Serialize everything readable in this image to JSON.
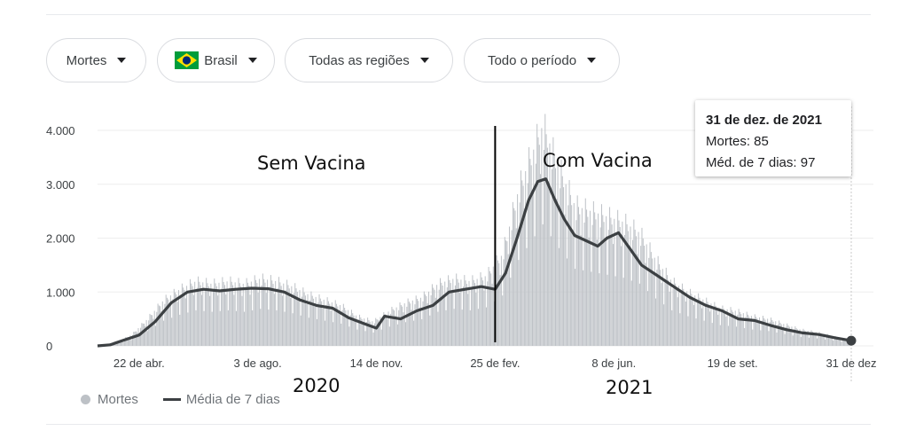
{
  "filters": {
    "metric": "Mortes",
    "country": "Brasil",
    "region": "Todas as regiões",
    "period": "Todo o período"
  },
  "colors": {
    "bars": "#bdc1c6",
    "average_line": "#3c4043",
    "divider": "#000000",
    "flag_green": "#009c3b",
    "flag_yellow": "#ffdf00",
    "flag_blue": "#002776"
  },
  "tooltip": {
    "title": "31 de dez. de 2021",
    "deaths_label": "Mortes: 85",
    "average_label": "Méd. de 7 dias: 97"
  },
  "legend": {
    "bars": "Mortes",
    "line": "Média de 7 dias"
  },
  "annotations": {
    "before": "Sem Vacina",
    "after": "Com Vacina",
    "year_left": "2020",
    "year_right": "2021"
  },
  "chart_data": {
    "type": "bar",
    "title": "",
    "xlabel": "",
    "ylabel": "",
    "ylim": [
      0,
      4000
    ],
    "yticks": [
      0,
      1000,
      2000,
      3000,
      4000
    ],
    "ytick_labels": [
      "0",
      "1.000",
      "2.000",
      "3.000",
      "4.000"
    ],
    "x_range": [
      "2020-03-17",
      "2021-12-31"
    ],
    "xtick_dates": [
      "2020-04-22",
      "2020-08-03",
      "2020-11-14",
      "2021-02-25",
      "2021-06-08",
      "2021-09-19",
      "2021-12-31"
    ],
    "xtick_labels": [
      "22 de abr.",
      "3 de ago.",
      "14 de nov.",
      "25 de fev.",
      "8 de jun.",
      "19 de set.",
      "31 de dez"
    ],
    "grid": true,
    "legend_position": "bottom-left",
    "vertical_marker_date": "2021-02-25",
    "highlight_point": {
      "date": "2021-12-31",
      "value": 97
    },
    "series": [
      {
        "name": "Mortes",
        "kind": "daily_bars",
        "note": "daily deaths fluctuate around the 7-day average (weekly reporting cycle)",
        "points": [
          [
            "2020-03-17",
            5
          ],
          [
            "2020-04-01",
            60
          ],
          [
            "2020-04-15",
            200
          ],
          [
            "2020-04-29",
            500
          ],
          [
            "2020-05-13",
            850
          ],
          [
            "2020-05-27",
            1050
          ],
          [
            "2020-06-10",
            1200
          ],
          [
            "2020-06-24",
            1150
          ],
          [
            "2020-07-08",
            1200
          ],
          [
            "2020-07-22",
            1150
          ],
          [
            "2020-08-05",
            1250
          ],
          [
            "2020-08-19",
            1200
          ],
          [
            "2020-09-02",
            1100
          ],
          [
            "2020-09-16",
            950
          ],
          [
            "2020-09-30",
            850
          ],
          [
            "2020-10-14",
            750
          ],
          [
            "2020-10-28",
            550
          ],
          [
            "2020-11-11",
            450
          ],
          [
            "2020-11-25",
            650
          ],
          [
            "2020-12-09",
            800
          ],
          [
            "2020-12-23",
            900
          ],
          [
            "2021-01-06",
            1150
          ],
          [
            "2021-01-20",
            1250
          ],
          [
            "2021-02-03",
            1200
          ],
          [
            "2021-02-17",
            1300
          ],
          [
            "2021-03-03",
            1700
          ],
          [
            "2021-03-17",
            2900
          ],
          [
            "2021-03-31",
            3700
          ],
          [
            "2021-04-07",
            4100
          ],
          [
            "2021-04-21",
            3300
          ],
          [
            "2021-05-05",
            2600
          ],
          [
            "2021-05-19",
            2500
          ],
          [
            "2021-06-02",
            2400
          ],
          [
            "2021-06-16",
            2300
          ],
          [
            "2021-06-30",
            2100
          ],
          [
            "2021-07-14",
            1600
          ],
          [
            "2021-07-28",
            1200
          ],
          [
            "2021-08-11",
            1000
          ],
          [
            "2021-08-25",
            850
          ],
          [
            "2021-09-08",
            700
          ],
          [
            "2021-09-22",
            650
          ],
          [
            "2021-10-06",
            550
          ],
          [
            "2021-10-20",
            500
          ],
          [
            "2021-11-03",
            400
          ],
          [
            "2021-11-17",
            300
          ],
          [
            "2021-12-01",
            250
          ],
          [
            "2021-12-15",
            180
          ],
          [
            "2021-12-31",
            85
          ]
        ]
      },
      {
        "name": "Média de 7 dias",
        "kind": "line",
        "points": [
          [
            "2020-03-17",
            0
          ],
          [
            "2020-03-28",
            20
          ],
          [
            "2020-04-08",
            100
          ],
          [
            "2020-04-22",
            200
          ],
          [
            "2020-05-06",
            450
          ],
          [
            "2020-05-20",
            800
          ],
          [
            "2020-06-03",
            1000
          ],
          [
            "2020-06-17",
            1050
          ],
          [
            "2020-07-01",
            1020
          ],
          [
            "2020-07-15",
            1050
          ],
          [
            "2020-07-29",
            1070
          ],
          [
            "2020-08-12",
            1060
          ],
          [
            "2020-08-26",
            1000
          ],
          [
            "2020-09-09",
            850
          ],
          [
            "2020-09-23",
            750
          ],
          [
            "2020-10-07",
            700
          ],
          [
            "2020-10-21",
            520
          ],
          [
            "2020-11-05",
            400
          ],
          [
            "2020-11-14",
            330
          ],
          [
            "2020-11-21",
            550
          ],
          [
            "2020-12-05",
            500
          ],
          [
            "2020-12-19",
            650
          ],
          [
            "2021-01-02",
            750
          ],
          [
            "2021-01-16",
            1000
          ],
          [
            "2021-01-30",
            1050
          ],
          [
            "2021-02-13",
            1100
          ],
          [
            "2021-02-25",
            1050
          ],
          [
            "2021-03-06",
            1350
          ],
          [
            "2021-03-16",
            2000
          ],
          [
            "2021-03-26",
            2700
          ],
          [
            "2021-04-03",
            3050
          ],
          [
            "2021-04-10",
            3100
          ],
          [
            "2021-04-18",
            2700
          ],
          [
            "2021-04-26",
            2350
          ],
          [
            "2021-05-05",
            2050
          ],
          [
            "2021-05-15",
            1950
          ],
          [
            "2021-05-25",
            1850
          ],
          [
            "2021-06-02",
            2000
          ],
          [
            "2021-06-12",
            2100
          ],
          [
            "2021-06-22",
            1800
          ],
          [
            "2021-07-02",
            1500
          ],
          [
            "2021-07-16",
            1300
          ],
          [
            "2021-07-30",
            1100
          ],
          [
            "2021-08-13",
            900
          ],
          [
            "2021-08-27",
            750
          ],
          [
            "2021-09-10",
            650
          ],
          [
            "2021-09-24",
            500
          ],
          [
            "2021-10-08",
            470
          ],
          [
            "2021-10-22",
            380
          ],
          [
            "2021-11-05",
            300
          ],
          [
            "2021-11-19",
            240
          ],
          [
            "2021-12-03",
            210
          ],
          [
            "2021-12-17",
            150
          ],
          [
            "2021-12-31",
            97
          ]
        ]
      }
    ]
  }
}
